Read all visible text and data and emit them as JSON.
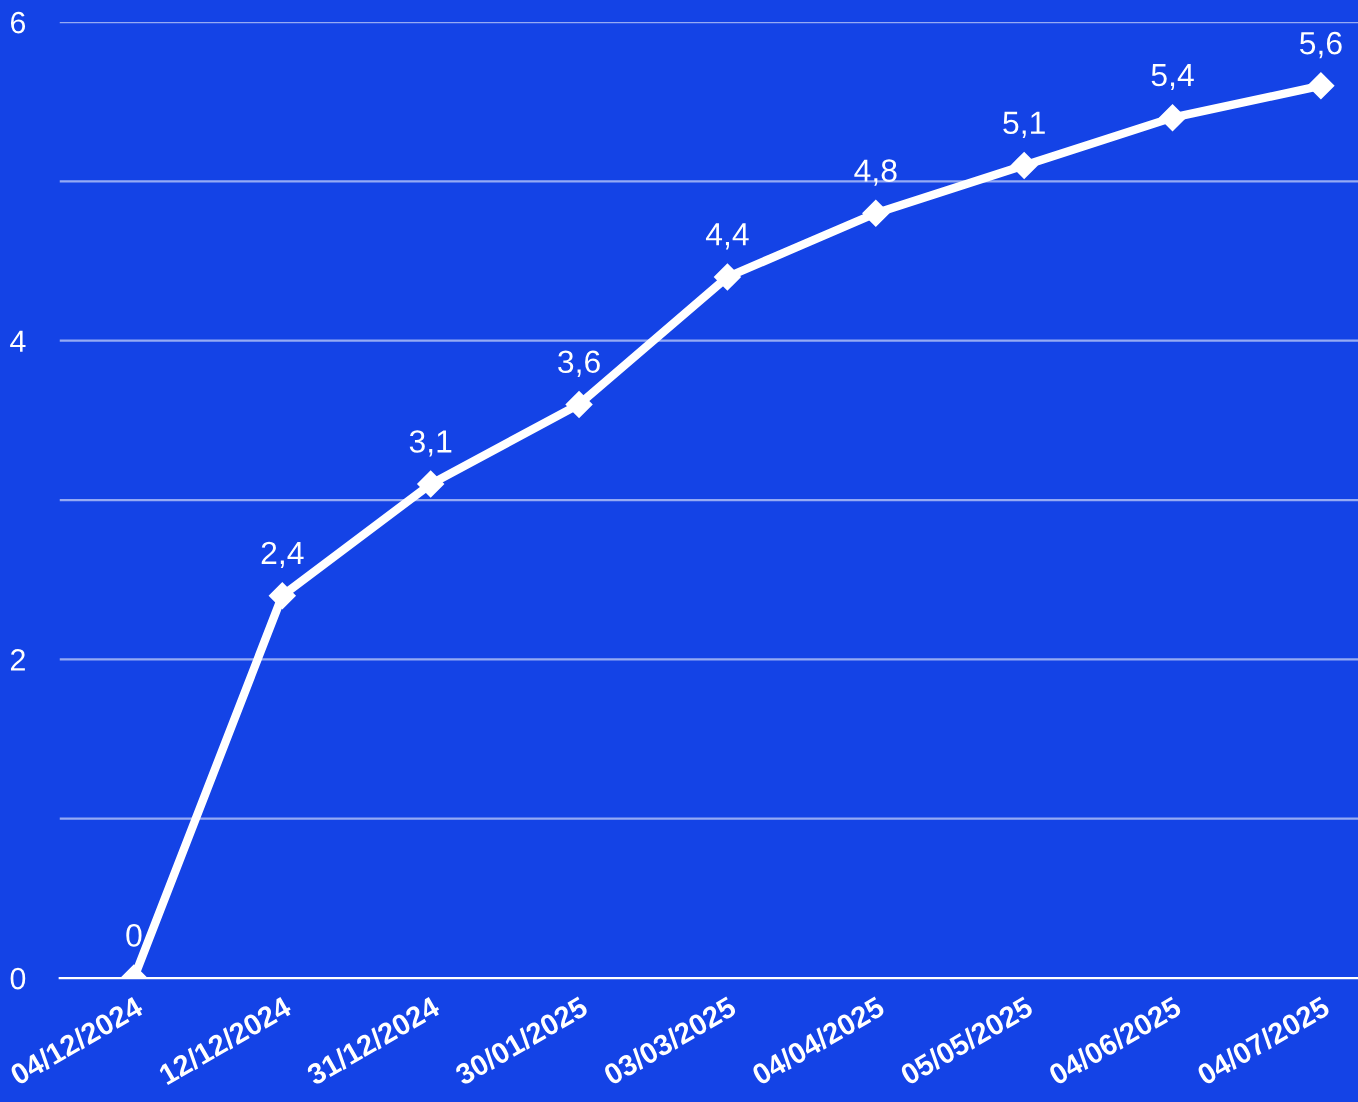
{
  "chart_data": {
    "type": "line",
    "categories": [
      "04/12/2024",
      "12/12/2024",
      "31/12/2024",
      "30/01/2025",
      "03/03/2025",
      "04/04/2025",
      "05/05/2025",
      "04/06/2025",
      "04/07/2025"
    ],
    "series": [
      {
        "color": "#ffffff",
        "values": [
          0,
          2.4,
          3.1,
          3.6,
          4.4,
          4.8,
          5.1,
          5.4,
          5.6
        ],
        "value_labels": [
          "0",
          "2,4",
          "3,1",
          "3,6",
          "4,4",
          "4,8",
          "5,1",
          "5,4",
          "5,6"
        ]
      }
    ],
    "ylim": [
      0,
      6
    ],
    "yticks": [
      0,
      {
        "value": 1,
        "label": null
      },
      2,
      {
        "value": 3,
        "label": null
      },
      4,
      {
        "value": 5,
        "label": null
      },
      6
    ],
    "grid": "y",
    "marker": "diamond",
    "line_style": "solid",
    "legend": false
  }
}
